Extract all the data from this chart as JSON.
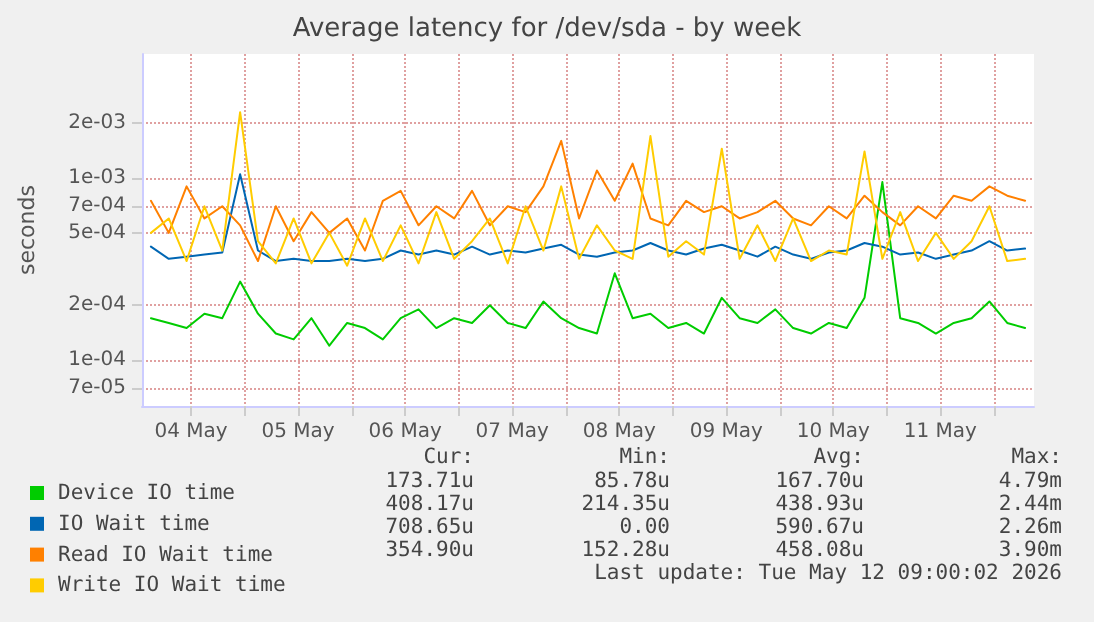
{
  "chart_data": {
    "type": "line",
    "title": "Average latency for /dev/sda - by week",
    "ylabel": "seconds",
    "log": "y",
    "grid": true,
    "legend": "bottom left",
    "marker": "none",
    "line_style": "solid",
    "xlim": [
      "2026-05-04T01:00",
      "2026-05-12T09:00"
    ],
    "xticks": [
      {
        "value": "2026-05-04T12:00",
        "label": "04 May"
      },
      {
        "value": "2026-05-05T00:00",
        "label": null
      },
      {
        "value": "2026-05-05T12:00",
        "label": "05 May"
      },
      {
        "value": "2026-05-06T00:00",
        "label": null
      },
      {
        "value": "2026-05-06T12:00",
        "label": "06 May"
      },
      {
        "value": "2026-05-07T00:00",
        "label": null
      },
      {
        "value": "2026-05-07T12:00",
        "label": "07 May"
      },
      {
        "value": "2026-05-08T00:00",
        "label": null
      },
      {
        "value": "2026-05-08T12:00",
        "label": "08 May"
      },
      {
        "value": "2026-05-09T00:00",
        "label": null
      },
      {
        "value": "2026-05-09T12:00",
        "label": "09 May"
      },
      {
        "value": "2026-05-10T00:00",
        "label": null
      },
      {
        "value": "2026-05-10T12:00",
        "label": "10 May"
      },
      {
        "value": "2026-05-11T00:00",
        "label": null
      },
      {
        "value": "2026-05-11T12:00",
        "label": "11 May"
      },
      {
        "value": "2026-05-12T00:00",
        "label": null
      }
    ],
    "ylim": [
      5.6e-05,
      0.0048
    ],
    "yticks": [
      {
        "value": 7e-05,
        "label": "7e-05"
      },
      {
        "value": 0.0001,
        "label": "1e-04"
      },
      {
        "value": 0.0002,
        "label": "2e-04"
      },
      {
        "value": 0.0005,
        "label": "5e-04"
      },
      {
        "value": 0.0007,
        "label": "7e-04"
      },
      {
        "value": 0.001,
        "label": "1e-03"
      },
      {
        "value": 0.002,
        "label": "2e-03"
      }
    ],
    "x": [
      "2026-05-04T03:00",
      "2026-05-04T07:00",
      "2026-05-04T11:00",
      "2026-05-04T15:00",
      "2026-05-04T19:00",
      "2026-05-04T23:00",
      "2026-05-05T03:00",
      "2026-05-05T07:00",
      "2026-05-05T11:00",
      "2026-05-05T15:00",
      "2026-05-05T19:00",
      "2026-05-05T23:00",
      "2026-05-06T03:00",
      "2026-05-06T07:00",
      "2026-05-06T11:00",
      "2026-05-06T15:00",
      "2026-05-06T19:00",
      "2026-05-06T23:00",
      "2026-05-07T03:00",
      "2026-05-07T07:00",
      "2026-05-07T11:00",
      "2026-05-07T15:00",
      "2026-05-07T19:00",
      "2026-05-07T23:00",
      "2026-05-08T03:00",
      "2026-05-08T07:00",
      "2026-05-08T11:00",
      "2026-05-08T15:00",
      "2026-05-08T19:00",
      "2026-05-08T23:00",
      "2026-05-09T03:00",
      "2026-05-09T07:00",
      "2026-05-09T11:00",
      "2026-05-09T15:00",
      "2026-05-09T19:00",
      "2026-05-09T23:00",
      "2026-05-10T03:00",
      "2026-05-10T07:00",
      "2026-05-10T11:00",
      "2026-05-10T15:00",
      "2026-05-10T19:00",
      "2026-05-10T23:00",
      "2026-05-11T03:00",
      "2026-05-11T07:00",
      "2026-05-11T11:00",
      "2026-05-11T15:00",
      "2026-05-11T19:00",
      "2026-05-11T23:00",
      "2026-05-12T03:00",
      "2026-05-12T07:00"
    ],
    "series": [
      {
        "name": "Device IO time",
        "color": "#00cc00",
        "values": [
          0.00017,
          0.00016,
          0.00015,
          0.00018,
          0.00017,
          0.00027,
          0.00018,
          0.00014,
          0.00013,
          0.00017,
          0.00012,
          0.00016,
          0.00015,
          0.00013,
          0.00017,
          0.00019,
          0.00015,
          0.00017,
          0.00016,
          0.0002,
          0.00016,
          0.00015,
          0.00021,
          0.00017,
          0.00015,
          0.00014,
          0.0003,
          0.00017,
          0.00018,
          0.00015,
          0.00016,
          0.00014,
          0.00022,
          0.00017,
          0.00016,
          0.00019,
          0.00015,
          0.00014,
          0.00016,
          0.00015,
          0.00022,
          0.00095,
          0.00017,
          0.00016,
          0.00014,
          0.00016,
          0.00017,
          0.00021,
          0.00016,
          0.00015
        ]
      },
      {
        "name": "IO Wait time",
        "color": "#0066b3",
        "values": [
          0.00042,
          0.00036,
          0.00037,
          0.00038,
          0.00039,
          0.00105,
          0.0004,
          0.00035,
          0.00036,
          0.00035,
          0.00035,
          0.00036,
          0.00035,
          0.00036,
          0.0004,
          0.00038,
          0.0004,
          0.00038,
          0.00042,
          0.00038,
          0.0004,
          0.00039,
          0.00041,
          0.00043,
          0.00038,
          0.00037,
          0.00039,
          0.0004,
          0.00044,
          0.0004,
          0.00038,
          0.00041,
          0.00043,
          0.0004,
          0.00037,
          0.00042,
          0.00038,
          0.00036,
          0.00039,
          0.0004,
          0.00044,
          0.00042,
          0.00038,
          0.00039,
          0.00036,
          0.00038,
          0.0004,
          0.00045,
          0.0004,
          0.00041
        ]
      },
      {
        "name": "Read IO Wait time",
        "color": "#ff8000",
        "values": [
          0.00075,
          0.0005,
          0.0009,
          0.0006,
          0.0007,
          0.00055,
          0.00035,
          0.0007,
          0.00045,
          0.00065,
          0.0005,
          0.0006,
          0.0004,
          0.00075,
          0.00085,
          0.00055,
          0.0007,
          0.0006,
          0.00085,
          0.00055,
          0.0007,
          0.00065,
          0.0009,
          0.0016,
          0.0006,
          0.0011,
          0.00075,
          0.0012,
          0.0006,
          0.00055,
          0.00075,
          0.00065,
          0.0007,
          0.0006,
          0.00065,
          0.00075,
          0.0006,
          0.00055,
          0.0007,
          0.0006,
          0.0008,
          0.00065,
          0.00055,
          0.0007,
          0.0006,
          0.0008,
          0.00075,
          0.0009,
          0.0008,
          0.00075
        ]
      },
      {
        "name": "Write IO Wait time",
        "color": "#ffcc00",
        "values": [
          0.0005,
          0.0006,
          0.00035,
          0.0007,
          0.0004,
          0.0023,
          0.00045,
          0.00034,
          0.0006,
          0.00034,
          0.0005,
          0.00033,
          0.0006,
          0.00035,
          0.00055,
          0.00034,
          0.00065,
          0.00036,
          0.00045,
          0.0006,
          0.00034,
          0.0007,
          0.0004,
          0.0009,
          0.00036,
          0.00055,
          0.0004,
          0.00036,
          0.0017,
          0.00037,
          0.00045,
          0.00038,
          0.00145,
          0.00036,
          0.00055,
          0.00035,
          0.0006,
          0.00035,
          0.0004,
          0.00038,
          0.0014,
          0.00036,
          0.00065,
          0.00035,
          0.0005,
          0.00036,
          0.00045,
          0.0007,
          0.00035,
          0.00036
        ]
      }
    ],
    "annotations": [
      "Cur:",
      "Min:",
      "Avg:",
      "Max:",
      "173.71u",
      "85.78u",
      "167.70u",
      "4.79m",
      "408.17u",
      "214.35u",
      "438.93u",
      "2.44m",
      "708.65u",
      "0.00",
      "590.67u",
      "2.26m",
      "354.90u",
      "152.28u",
      "458.08u",
      "3.90m",
      "Last update: Tue May 12 09:00:02 2026"
    ]
  }
}
